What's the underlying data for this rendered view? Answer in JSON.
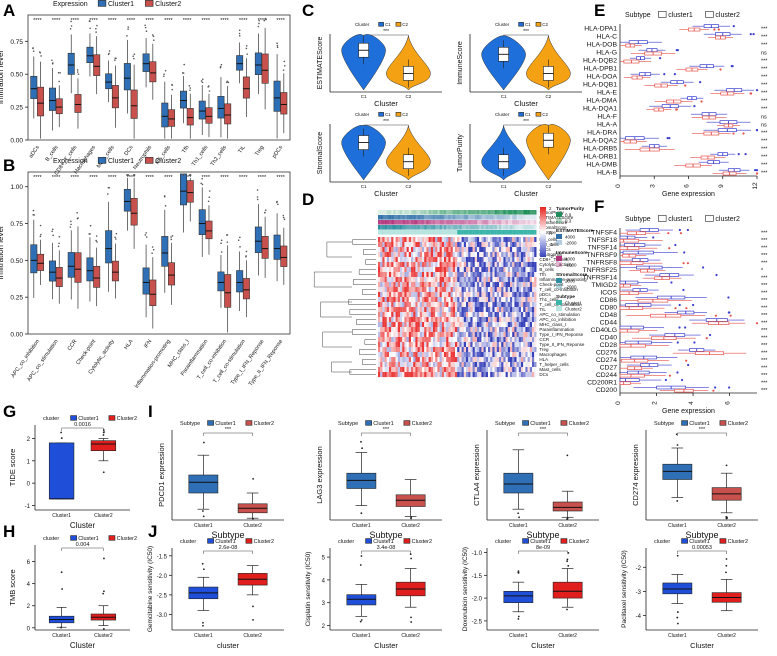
{
  "figure": {
    "colors": {
      "c1_blue": "#2F6FB5",
      "c2_red": "#C9514D",
      "bright_blue": "#1F4FD8",
      "bright_red": "#E01E1E",
      "violin_blue": "#1E6FD9",
      "violin_orange": "#F5A114",
      "open_blue": "#3A3FD0",
      "open_red": "#E8524B"
    },
    "panel_labels": [
      "A",
      "B",
      "C",
      "D",
      "E",
      "F",
      "G",
      "H",
      "I",
      "J"
    ]
  },
  "panelA": {
    "legend_title": "Expression",
    "legend_items": [
      "Cluster1",
      "Cluster2"
    ],
    "ylabel": "Infiltration level",
    "yticks": [
      "0.00",
      "0.25",
      "0.50",
      "0.75"
    ],
    "categories": [
      "aDCs",
      "B_cells",
      "CD8+_T_cells",
      "Macrophages",
      "Mast_cells",
      "DCs",
      "Neutrophils",
      "NK_cells",
      "Tfh",
      "Th1_cells",
      "Th2_cells",
      "TIL",
      "Treg",
      "pDCs"
    ],
    "sig": [
      "****",
      "****",
      "****",
      "****",
      "****",
      "****",
      "****",
      "****",
      "****",
      "****",
      "****",
      "****",
      "****",
      "****"
    ],
    "chart_data": {
      "type": "box",
      "ylim": [
        0,
        0.95
      ],
      "series": [
        {
          "name": "Cluster1",
          "medians": [
            0.39,
            0.3,
            0.57,
            0.64,
            0.44,
            0.47,
            0.58,
            0.18,
            0.3,
            0.22,
            0.24,
            0.58,
            0.57,
            0.32
          ]
        },
        {
          "name": "Cluster2",
          "medians": [
            0.28,
            0.25,
            0.27,
            0.56,
            0.32,
            0.26,
            0.51,
            0.16,
            0.17,
            0.18,
            0.19,
            0.39,
            0.53,
            0.27
          ]
        }
      ]
    }
  },
  "panelB": {
    "legend_title": "Expression",
    "legend_items": [
      "Cluster1",
      "Cluster2"
    ],
    "ylabel": "Infiltration level",
    "yticks": [
      "0.00",
      "0.25",
      "0.50",
      "0.75",
      "1.00"
    ],
    "categories": [
      "APC_co_inhibition",
      "APC_co_stimulation",
      "CCR",
      "Check-point",
      "Cytolytic_activity",
      "HLA",
      "IFN",
      "Inflammation-promoting",
      "MHC_class_I",
      "Parainflammation",
      "T_cell_co-inhibition",
      "T_cell_co-stimulation",
      "Type_I_IFN_Reponse",
      "Type_II_IFN_Reponse"
    ],
    "sig": [
      "****",
      "****",
      "****",
      "****",
      "****",
      "****",
      "****",
      "****",
      "****",
      "****",
      "****",
      "****",
      "****",
      "****"
    ],
    "chart_data": {
      "type": "box",
      "ylim": [
        0,
        1.1
      ],
      "series": [
        {
          "name": "Cluster1",
          "medians": [
            0.5,
            0.42,
            0.46,
            0.43,
            0.58,
            0.9,
            0.35,
            0.55,
            0.97,
            0.75,
            0.35,
            0.35,
            0.63,
            0.58
          ]
        },
        {
          "name": "Cluster2",
          "medians": [
            0.48,
            0.38,
            0.44,
            0.38,
            0.42,
            0.82,
            0.27,
            0.4,
            0.96,
            0.7,
            0.28,
            0.3,
            0.58,
            0.52
          ]
        }
      ]
    }
  },
  "panelC": {
    "legend_title": "Cluster",
    "legend_items": [
      "C1",
      "C2"
    ],
    "xlabel": "Cluster",
    "xticks": [
      "C1",
      "C2"
    ],
    "charts": [
      {
        "ylabel": "ESTIMATEScore",
        "sig": "***",
        "chart_data": {
          "type": "violin",
          "medians": [
            0.72,
            0.32
          ]
        }
      },
      {
        "ylabel": "ImmuneScore",
        "sig": "***",
        "chart_data": {
          "type": "violin",
          "medians": [
            0.65,
            0.32
          ]
        }
      },
      {
        "ylabel": "StromalScore",
        "sig": "***",
        "chart_data": {
          "type": "violin",
          "medians": [
            0.68,
            0.35
          ]
        }
      },
      {
        "ylabel": "TumorPurity",
        "sig": "***",
        "chart_data": {
          "type": "violin",
          "medians": [
            0.35,
            0.72
          ]
        }
      }
    ]
  },
  "panelD": {
    "annot_rows": [
      "TumorPurity",
      "ESTIMATEScore",
      "ImmuneScore",
      "StromalScore",
      "Subtype"
    ],
    "rows": [
      "NK_cells",
      "Th2_cells",
      "aDCs",
      "Neutrophils",
      "CD8+_T_cells",
      "Cytolytic_activity",
      "B_cells",
      "Tfh",
      "Inflammation-promoting",
      "Check-point",
      "T_cell_co-inhibition",
      "pDCs",
      "Th1_cells",
      "T_cell_co-stimulation",
      "TIL",
      "APC_co_stimulation",
      "APC_co_inhibition",
      "MHC_class_I",
      "Parainflammation",
      "Type_I_IFN_Reponse",
      "CCR",
      "Type_II_IFN_Reponse",
      "Treg",
      "Macrophages",
      "HLA",
      "T_helper_cells",
      "Mast_cells",
      "DCs"
    ],
    "scale_ticks": [
      "2",
      "1",
      "0",
      "-1",
      "-2"
    ],
    "legends": [
      {
        "title": "TumorPurity",
        "ticks": [
          "0.9",
          "0.3"
        ]
      },
      {
        "title": "ESTIMATEScore",
        "ticks": [
          "4000",
          "-2000"
        ]
      },
      {
        "title": "ImmuneScore",
        "ticks": [
          "4000",
          "-1000"
        ]
      },
      {
        "title": "StromalScore",
        "ticks": [
          "2000",
          "-2000"
        ]
      },
      {
        "title": "Subtype",
        "ticks": [
          "Cluster1",
          "Cluster2"
        ]
      }
    ]
  },
  "panelE": {
    "legend_title": "Subtype",
    "legend_items": [
      "cluster1",
      "cluster2"
    ],
    "xlabel": "Gene expression",
    "xticks": [
      "0",
      "3",
      "6",
      "9",
      "12"
    ],
    "chart_data": {
      "type": "box",
      "orientation": "horizontal",
      "xlim": [
        0,
        12
      ],
      "genes": [
        "HLA-DPA1",
        "HLA-C",
        "HLA-DOB",
        "HLA-G",
        "HLA-DQB2",
        "HLA-DPB1",
        "HLA-DOA",
        "HLA-DQB1",
        "HLA-E",
        "HLA-DMA",
        "HLA-DQA1",
        "HLA-F",
        "HLA-A",
        "HLA-DRA",
        "HLA-DQA2",
        "HLA-DRB5",
        "HLA-DRB1",
        "HLA-DMB",
        "HLA-B"
      ],
      "sig": [
        "***",
        "***",
        "***",
        "ns",
        "***",
        "***",
        "***",
        "***",
        "***",
        "***",
        "***",
        "ns",
        "ns",
        "***",
        "***",
        "***",
        "***",
        "***",
        "***"
      ],
      "cluster1": [
        8.0,
        9.0,
        1.6,
        2.8,
        1.8,
        7.6,
        2.2,
        5.0,
        10.0,
        6.3,
        4.4,
        7.8,
        9.5,
        9.4,
        1.3,
        3.0,
        9.0,
        8.2,
        10.0
      ],
      "cluster2": [
        6.5,
        8.8,
        0.9,
        2.9,
        1.0,
        6.3,
        1.5,
        3.6,
        9.4,
        4.7,
        3.4,
        7.8,
        9.5,
        8.0,
        0.9,
        2.6,
        7.7,
        6.4,
        9.6
      ]
    }
  },
  "panelF": {
    "legend_title": "Subtype",
    "legend_items": [
      "cluster1",
      "cluster2"
    ],
    "xlabel": "Gene expression",
    "xticks": [
      "0",
      "2",
      "4",
      "6"
    ],
    "chart_data": {
      "type": "box",
      "orientation": "horizontal",
      "xlim": [
        0,
        7.5
      ],
      "genes": [
        "TNFSF4",
        "TNFSF18",
        "TNFSF14",
        "TNFRSF9",
        "TNFRSF8",
        "TNFRSF25",
        "TNFRSF14",
        "TMIGD2",
        "ICOS",
        "CD86",
        "CD80",
        "CD48",
        "CD44",
        "CD40LG",
        "CD40",
        "CD28",
        "CD276",
        "CD274",
        "CD27",
        "CD244",
        "CD200R1",
        "CD200"
      ],
      "sig": [
        "***",
        "***",
        "***",
        "***",
        "***",
        "*",
        "***",
        "***",
        "***",
        "***",
        "***",
        "***",
        "***",
        "***",
        "***",
        "***",
        "***",
        "***",
        "***",
        "***",
        "***",
        "***"
      ],
      "cluster1": [
        1.6,
        0.4,
        0.8,
        1.0,
        1.1,
        1.6,
        2.7,
        0.3,
        1.1,
        2.8,
        1.0,
        3.6,
        5.3,
        0.6,
        3.0,
        1.0,
        4.2,
        1.3,
        1.6,
        1.0,
        0.3,
        2.8
      ],
      "cluster2": [
        0.9,
        0.2,
        0.4,
        0.5,
        0.6,
        1.5,
        2.3,
        0.2,
        0.5,
        1.8,
        0.5,
        2.5,
        5.4,
        0.4,
        2.4,
        0.6,
        4.9,
        0.8,
        0.8,
        0.6,
        0.2,
        3.5
      ]
    }
  },
  "panelG": {
    "legend_title": "cluster",
    "legend_items": [
      "Cluster1",
      "Cluster2"
    ],
    "ylabel": "TIDE score",
    "xlabel": "Cluster",
    "xticks": [
      "Cluster1",
      "Cluster2"
    ],
    "yticks": [
      "-1",
      "0",
      "1",
      "2"
    ],
    "pvalue": "0.0016",
    "chart_data": {
      "type": "box",
      "ylim": [
        -1.2,
        2.6
      ],
      "boxes": [
        {
          "q1": -0.7,
          "med": -0.7,
          "q3": 1.8,
          "lo": -0.7,
          "hi": 1.8
        },
        {
          "q1": 1.45,
          "med": 1.75,
          "q3": 1.9,
          "lo": 1.0,
          "hi": 2.0
        }
      ]
    }
  },
  "panelH": {
    "legend_title": "cluster",
    "legend_items": [
      "Cluster1",
      "Cluster2"
    ],
    "ylabel": "TMB score",
    "xlabel": "Cluster",
    "xticks": [
      "Cluster1",
      "Cluster2"
    ],
    "yticks": [
      "0",
      "2",
      "4",
      "6"
    ],
    "pvalue": "0.004",
    "chart_data": {
      "type": "box",
      "ylim": [
        -0.2,
        7.5
      ],
      "boxes": [
        {
          "q1": 0.45,
          "med": 0.75,
          "q3": 1.05,
          "lo": 0.05,
          "hi": 1.85
        },
        {
          "q1": 0.7,
          "med": 0.95,
          "q3": 1.25,
          "lo": 0.2,
          "hi": 2.0
        }
      ]
    }
  },
  "panelI": {
    "legend_title": "Subtype",
    "legend_items": [
      "Cluster1",
      "Cluster2"
    ],
    "xlabel": "Subtype",
    "charts": [
      {
        "ylabel": "PDCD1 expression",
        "sig": "***",
        "chart_data": {
          "type": "box",
          "boxes": [
            {
              "q1": 0.3,
              "med": 0.42,
              "q3": 0.5,
              "lo": 0.12,
              "hi": 0.72
            },
            {
              "q1": 0.08,
              "med": 0.13,
              "q3": 0.18,
              "lo": 0.02,
              "hi": 0.3
            }
          ]
        }
      },
      {
        "ylabel": "LAG3 expression",
        "sig": "***",
        "chart_data": {
          "type": "box",
          "boxes": [
            {
              "q1": 0.35,
              "med": 0.44,
              "q3": 0.52,
              "lo": 0.16,
              "hi": 0.75
            },
            {
              "q1": 0.15,
              "med": 0.22,
              "q3": 0.28,
              "lo": 0.04,
              "hi": 0.45
            }
          ]
        }
      },
      {
        "ylabel": "CTLA4 expression",
        "sig": "***",
        "chart_data": {
          "type": "box",
          "boxes": [
            {
              "q1": 0.3,
              "med": 0.4,
              "q3": 0.52,
              "lo": 0.12,
              "hi": 0.78
            },
            {
              "q1": 0.1,
              "med": 0.14,
              "q3": 0.2,
              "lo": 0.03,
              "hi": 0.32
            }
          ]
        }
      },
      {
        "ylabel": "CD274 expression",
        "sig": "***",
        "chart_data": {
          "type": "box",
          "boxes": [
            {
              "q1": 0.45,
              "med": 0.54,
              "q3": 0.62,
              "lo": 0.25,
              "hi": 0.8
            },
            {
              "q1": 0.22,
              "med": 0.29,
              "q3": 0.36,
              "lo": 0.08,
              "hi": 0.52
            }
          ]
        }
      }
    ]
  },
  "panelJ": {
    "legend_title": "cluster",
    "legend_items": [
      "Cluster1",
      "Cluster2"
    ],
    "charts": [
      {
        "ylabel": "Gemcitabine sensitivity (IC50)",
        "xlabel": "cluster",
        "pvalue": "2.6e-08",
        "yticks": [
          "-3.0",
          "-2.5",
          "-2.0",
          "-1.5"
        ],
        "ylim": [
          -3.4,
          -1.3
        ],
        "chart_data": {
          "type": "box",
          "boxes": [
            {
              "q1": -2.6,
              "med": -2.45,
              "q3": -2.3,
              "lo": -2.9,
              "hi": -2.05
            },
            {
              "q1": -2.25,
              "med": -2.1,
              "q3": -1.95,
              "lo": -2.5,
              "hi": -1.75
            }
          ]
        }
      },
      {
        "ylabel": "Cisplatin sensitivity (IC50)",
        "xlabel": "Cluster",
        "pvalue": "3.4e-08",
        "yticks": [
          "2",
          "3",
          "4",
          "5"
        ],
        "ylim": [
          1.8,
          5.4
        ],
        "chart_data": {
          "type": "box",
          "boxes": [
            {
              "q1": 2.9,
              "med": 3.15,
              "q3": 3.35,
              "lo": 2.4,
              "hi": 3.8
            },
            {
              "q1": 3.3,
              "med": 3.6,
              "q3": 3.9,
              "lo": 2.8,
              "hi": 4.5
            }
          ]
        }
      },
      {
        "ylabel": "Doxorubicin sensitivity (IC50)",
        "xlabel": "Cluster",
        "pvalue": "8e-09",
        "yticks": [
          "-2.5",
          "-2.0",
          "-1.5",
          "-1.0"
        ],
        "ylim": [
          -2.7,
          -0.9
        ],
        "chart_data": {
          "type": "box",
          "boxes": [
            {
              "q1": -2.1,
              "med": -1.95,
              "q3": -1.85,
              "lo": -2.3,
              "hi": -1.65
            },
            {
              "q1": -2.0,
              "med": -1.85,
              "q3": -1.65,
              "lo": -2.2,
              "hi": -1.35
            }
          ]
        }
      },
      {
        "ylabel": "Paclitaxel sensitivity (IC50)",
        "xlabel": "Cluster",
        "pvalue": "0.00053",
        "yticks": [
          "-4",
          "-3",
          "-2"
        ],
        "ylim": [
          -4.6,
          -1.2
        ],
        "chart_data": {
          "type": "box",
          "boxes": [
            {
              "q1": -3.1,
              "med": -2.9,
              "q3": -2.65,
              "lo": -3.5,
              "hi": -2.3
            },
            {
              "q1": -3.45,
              "med": -3.25,
              "q3": -3.05,
              "lo": -3.8,
              "hi": -2.5
            }
          ]
        }
      }
    ]
  }
}
